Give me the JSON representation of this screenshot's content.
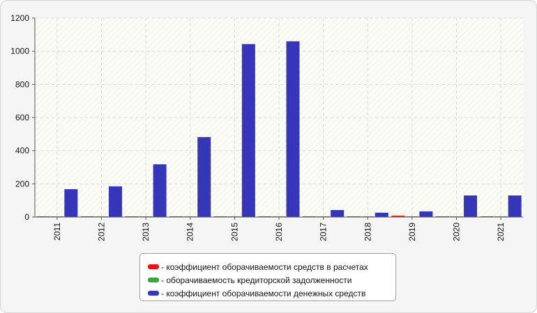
{
  "chart_data": {
    "type": "bar",
    "categories": [
      "2011",
      "2012",
      "2013",
      "2014",
      "2015",
      "2016",
      "2017",
      "2018",
      "2019",
      "2020",
      "2021"
    ],
    "series": [
      {
        "name": "коэффициент оборачиваемости средств в расчетах",
        "color": "#ee1111",
        "values": [
          3,
          3,
          4,
          4,
          4,
          4,
          4,
          4,
          8,
          4,
          4
        ]
      },
      {
        "name": "оборачиваемость кредиторской задолженности",
        "color": "#33aa33",
        "values": [
          2,
          2,
          2,
          2,
          2,
          2,
          2,
          2,
          3,
          2,
          2
        ]
      },
      {
        "name": "коэффициент оборачиваемости денежных средств",
        "color": "#3636b8",
        "values": [
          168,
          185,
          318,
          482,
          1043,
          1060,
          42,
          26,
          34,
          130,
          130
        ]
      }
    ],
    "ylim": [
      0,
      1200
    ],
    "yticks": [
      0,
      200,
      400,
      600,
      800,
      1000,
      1200
    ],
    "grid": true,
    "legend_position": "bottom",
    "title": "",
    "xlabel": "",
    "ylabel": ""
  },
  "legend": {
    "prefix": "- "
  }
}
